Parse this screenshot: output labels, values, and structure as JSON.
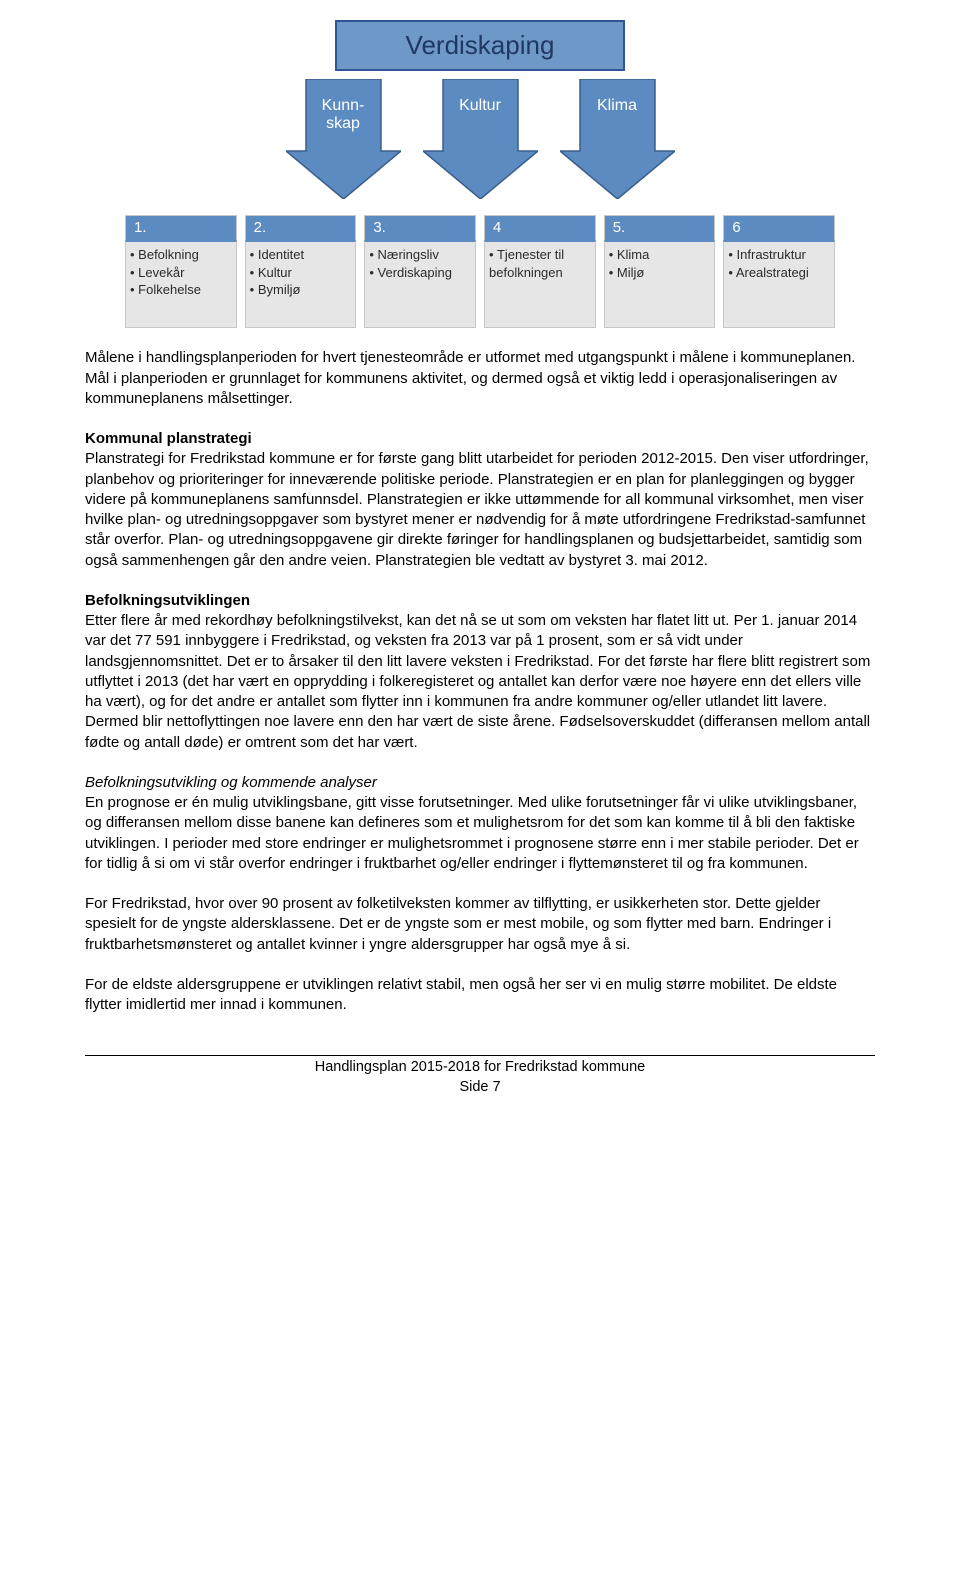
{
  "diagram": {
    "top_box": {
      "label": "Verdiskaping",
      "bg": "#6e98c7",
      "border": "#2f5597",
      "text_color": "#1f3864",
      "fontsize": 26
    },
    "arrows": [
      {
        "lines": [
          "Kunn-",
          "skap"
        ]
      },
      {
        "lines": [
          "Kultur"
        ]
      },
      {
        "lines": [
          "Klima"
        ]
      }
    ],
    "arrow_style": {
      "fill": "#5b8bc1",
      "stroke": "#3a5f8a",
      "text_color": "#ffffff",
      "fontsize": 16
    },
    "columns": [
      {
        "head": "1.",
        "items": [
          "Befolkning",
          "Levekår",
          "Folkehelse"
        ]
      },
      {
        "head": "2.",
        "items": [
          "Identitet",
          "Kultur",
          "Bymiljø"
        ]
      },
      {
        "head": "3.",
        "items": [
          "Næringsliv",
          "Verdiskaping"
        ]
      },
      {
        "head": "4",
        "items": [
          "Tjenester til befolkningen"
        ]
      },
      {
        "head": "5.",
        "items": [
          "Klima",
          "Miljø"
        ]
      },
      {
        "head": "6",
        "items": [
          "Infrastruktur",
          "Arealstrategi"
        ]
      }
    ],
    "column_style": {
      "head_bg": "#5b8bc1",
      "head_text": "#ffffff",
      "body_bg": "#e6e6e6",
      "border": "#c8c8c8",
      "fontsize": 13
    }
  },
  "sections": {
    "intro": "Målene i handlingsplanperioden for hvert tjenesteområde er utformet med utgangspunkt i målene i kommuneplanen. Mål i planperioden er grunnlaget for kommunens aktivitet, og dermed også et viktig ledd i operasjonaliseringen av kommuneplanens målsettinger.",
    "kommunal_heading": "Kommunal planstrategi",
    "kommunal_body": "Planstrategi for Fredrikstad kommune er for første gang blitt utarbeidet for perioden 2012-2015. Den viser utfordringer, planbehov og prioriteringer for inneværende politiske periode. Planstrategien er en plan for planleggingen og bygger videre på kommuneplanens samfunnsdel. Planstrategien er ikke uttømmende for all kommunal virksomhet, men viser hvilke plan- og utredningsoppgaver som bystyret mener er nødvendig for å møte utfordringene Fredrikstad-samfunnet står overfor. Plan- og utredningsoppgavene gir direkte føringer for handlingsplanen og budsjettarbeidet, samtidig som også sammenhengen går den andre veien. Planstrategien ble vedtatt av bystyret 3. mai 2012.",
    "befolkning_heading": "Befolkningsutviklingen",
    "befolkning_body": "Etter flere år med rekordhøy befolkningstilvekst, kan det nå se ut som om veksten har flatet litt ut. Per 1. januar 2014 var det 77 591 innbyggere i Fredrikstad, og veksten fra 2013 var på 1 prosent, som er så vidt under landsgjennomsnittet.  Det er to årsaker til den litt lavere veksten i Fredrikstad. For det første har flere blitt registrert som utflyttet i 2013 (det har vært en opprydding i folkeregisteret og antallet kan derfor være noe høyere enn det ellers ville ha vært), og for det andre er antallet som flytter inn i kommunen fra andre kommuner og/eller utlandet litt lavere. Dermed blir nettoflyttingen noe lavere enn den har vært de siste årene. Fødselsoverskuddet (differansen mellom antall fødte og antall døde) er omtrent som det har vært.",
    "sub_heading": "Befolkningsutvikling og kommende analyser",
    "sub_body": "En prognose er én mulig utviklingsbane, gitt visse forutsetninger. Med ulike forutsetninger får vi ulike utviklingsbaner, og differansen mellom disse banene kan defineres som et mulighetsrom for det som kan komme til å bli den faktiske utviklingen. I perioder med store endringer er mulighetsrommet i prognosene større enn i mer stabile perioder. Det er for tidlig å si om vi står overfor endringer i fruktbarhet og/eller endringer i flyttemønsteret til og fra kommunen.",
    "p_fredrikstad": "For Fredrikstad, hvor over 90 prosent av folketilveksten kommer av tilflytting, er usikkerheten stor. Dette gjelder spesielt for de yngste aldersklassene. Det er de yngste som er mest mobile, og som flytter med barn. Endringer i fruktbarhetsmønsteret og antallet kvinner i yngre aldersgrupper har også mye å si.",
    "p_eldste": "For de eldste aldersgruppene er utviklingen relativt stabil, men også her ser vi en mulig større mobilitet. De eldste flytter imidlertid mer innad i kommunen."
  },
  "footer": {
    "line1": "Handlingsplan 2015-2018 for Fredrikstad kommune",
    "line2": "Side 7"
  }
}
